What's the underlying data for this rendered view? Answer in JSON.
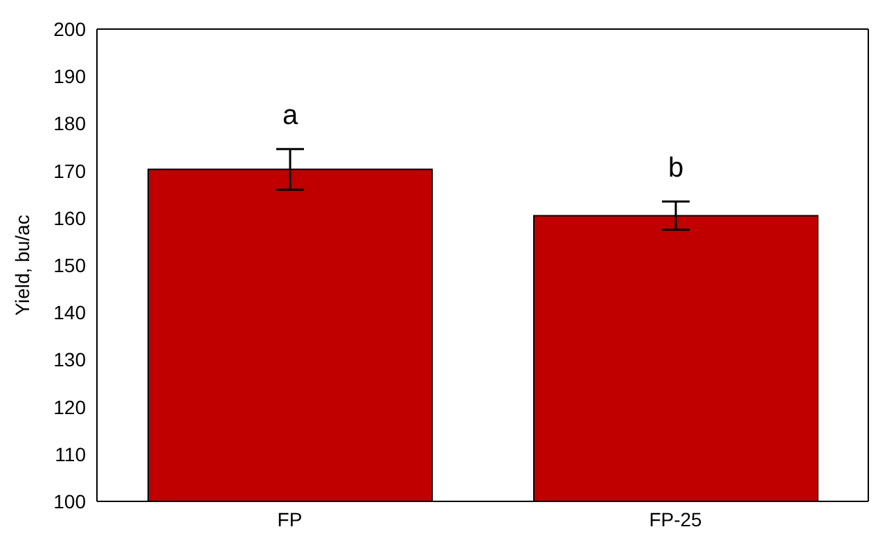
{
  "chart_data": {
    "type": "bar",
    "ylabel": "Yield, bu/ac",
    "categories": [
      "FP",
      "FP-25"
    ],
    "values": [
      170.3,
      160.5
    ],
    "errors": [
      4.3,
      3
    ],
    "color": "#c00000",
    "ylim": [
      100,
      200
    ],
    "yticks": [
      100,
      110,
      120,
      130,
      140,
      150,
      160,
      170,
      180,
      190,
      200
    ],
    "grid": false,
    "annotations": [
      "a",
      "b"
    ]
  }
}
